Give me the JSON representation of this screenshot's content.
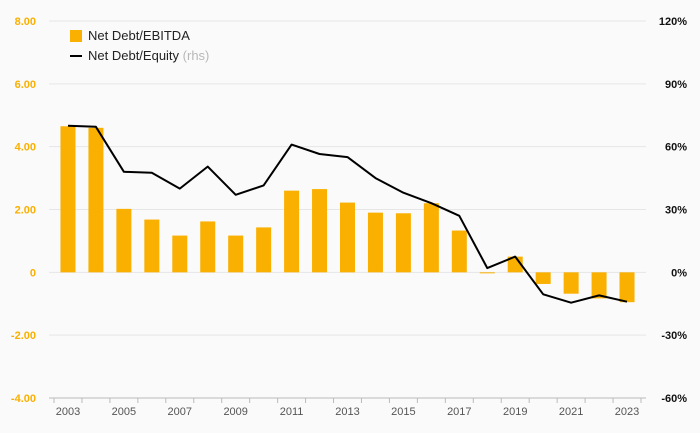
{
  "chart_data": {
    "type": "bar",
    "categories": [
      "2003",
      "2004",
      "2005",
      "2006",
      "2007",
      "2008",
      "2009",
      "2010",
      "2011",
      "2012",
      "2013",
      "2014",
      "2015",
      "2016",
      "2017",
      "2018",
      "2019",
      "2020",
      "2021",
      "2022",
      "2023"
    ],
    "series": [
      {
        "name": "Net Debt/EBITDA",
        "type": "bar",
        "axis": "left",
        "color": "#f9b000",
        "values": [
          4.65,
          4.6,
          2.02,
          1.68,
          1.17,
          1.62,
          1.17,
          1.43,
          2.6,
          2.65,
          2.22,
          1.9,
          1.88,
          2.2,
          1.33,
          -0.03,
          0.5,
          -0.37,
          -0.68,
          -0.83,
          -0.95
        ]
      },
      {
        "name": "Net Debt/Equity",
        "name_suffix": "(rhs)",
        "type": "line",
        "axis": "right",
        "color": "#000000",
        "values": [
          70,
          69.5,
          48,
          47.5,
          40,
          50.5,
          37,
          41.5,
          61,
          56.5,
          55,
          45,
          38,
          33,
          27,
          2,
          7.5,
          -10.5,
          -14.5,
          -11,
          -14
        ]
      }
    ],
    "y_left": {
      "lim": [
        -4,
        8
      ],
      "ticks": [
        "8.00",
        "6.00",
        "4.00",
        "2.00",
        "0",
        "-2.00",
        "-4.00"
      ],
      "tick_color": "#f9b000"
    },
    "y_right": {
      "lim": [
        -60,
        120
      ],
      "ticks": [
        "120%",
        "90%",
        "60%",
        "30%",
        "0%",
        "-30%",
        "-60%"
      ]
    },
    "x_tick_labels": [
      "2003",
      "2005",
      "2007",
      "2009",
      "2011",
      "2013",
      "2015",
      "2017",
      "2019",
      "2021",
      "2023"
    ],
    "grid": true,
    "legend_position": "top-left"
  }
}
